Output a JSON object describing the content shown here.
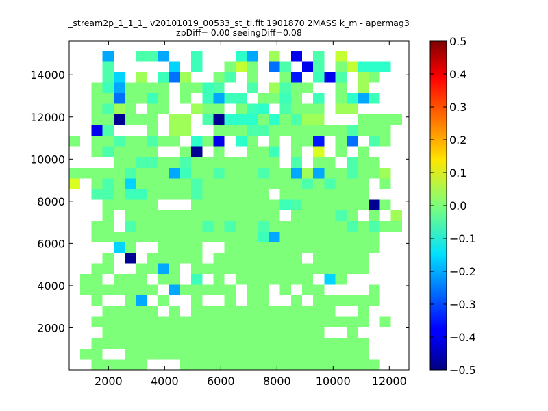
{
  "chart_data": {
    "type": "heatmap",
    "title_line1": "_stream2p_1_1_1_ v20101019_00533_st_tl.fit 1901870 2MASS k_m - apermag3",
    "title_line2": "zpDiff= 0.00 seeingDiff=0.08",
    "xlabel": "",
    "ylabel": "",
    "xlim": [
      600,
      12700
    ],
    "ylim": [
      0,
      15600
    ],
    "x_ticks": [
      2000,
      4000,
      6000,
      8000,
      10000,
      12000
    ],
    "y_ticks": [
      2000,
      4000,
      6000,
      8000,
      10000,
      12000,
      14000
    ],
    "colorbar": {
      "colormap": "jet",
      "vmin": -0.5,
      "vmax": 0.5,
      "ticks": [
        "0.5",
        "0.4",
        "0.3",
        "0.2",
        "0.1",
        "0.0",
        "−0.1",
        "−0.2",
        "−0.3",
        "−0.4",
        "−0.5"
      ]
    },
    "grid": {
      "x0": 600,
      "y0": 0,
      "cell_w": 395,
      "cell_h": 505,
      "empty_cell": ".",
      "rows_top_to_bottom": [
        "...B..ccB..a...dB.e.E.c.h....",
        "...c.....A.a..bhb.Cc.Ec.bhddd.",
        "...cA.e.aCe..bc.b..bD.aEc.eb.",
        "..baBbbbb.bbac..c.ecbb..b.e..",
        "..bbCbbab.b.aBaa.bbab.a.bdBa..",
        "..bceb.bb..ebb.bad.cbbb.ee...",
        "..bbFbbb.ee.cFdddbdbcee...bbbb",
        "..Ec...b.ee..bbbccbbbbbbbcbbb",
        "b.bbcbbcbb.dbE.db.b.bbD.bC.cb",
        "..bcbbbb..bF.b..bba.b.f.b.b..",
        "....bbccbbcbbbbbbbb.c.bb.cbb..",
        "bbbbbcbbbBabbcbbbcbbBeBbbcbbe",
        "f.bcbAbbbbbcbbbbbbbbbcbcbbb.b",
        "..ccbaabbbbcbbbbbb.bbbbbbbb..",
        "...bbbbb...bbbbbbbbacbbbbbbFb..",
        "...b.bbbbbbbbbbbbbb.bbbbcb.b.e",
        "..bb.cbbbbbbcbcbbcbbbbbbbcbcbb",
        "..bbbbbbbbbbbbbbbaBbbbbbbbbb.",
        "....Ab..bbbb..bbbbbbbbbbbbbb.",
        "...b.F.bbbbb.bbbbbbbb.bbbbb..",
        "..bb..bbBb.bbbbbbbbbbbbbbbb..",
        ".bb.bbb.bb.a.b.bbbbbbb.Ab....",
        ".bbbbbbb.Bbbbbb.bb.b.bb....b",
        "..b..bB.b..b..b.bb..b.bbbbbb.",
        "...bbbbb.b.bbbbbbbbbbbbb..b..",
        "..bbbbbbbbbbbbbbbbbbbbbbbbb.b",
        "...bbbbbbbbbbbbbbbbbbbb..b..",
        "..bbbbbbbbbbbbbbbbbbbbbbbbb.",
        ".bb..bbbbbbbbbbbbbbbbbbbbbb.",
        "..bbbbb...bbbbbbbbbbbbbbbbbb."
      ],
      "palette": {
        "a": "#3cffba",
        "b": "#7dff7a",
        "c": "#4cffab",
        "d": "#2dffca",
        "e": "#9fff58",
        "f": "#d8ff1f",
        "h": "#c4ff33",
        "A": "#00d4ff",
        "B": "#00a8ff",
        "C": "#0070ff",
        "D": "#0018ff",
        "E": "#0000ec",
        "F": "#000092"
      }
    }
  }
}
